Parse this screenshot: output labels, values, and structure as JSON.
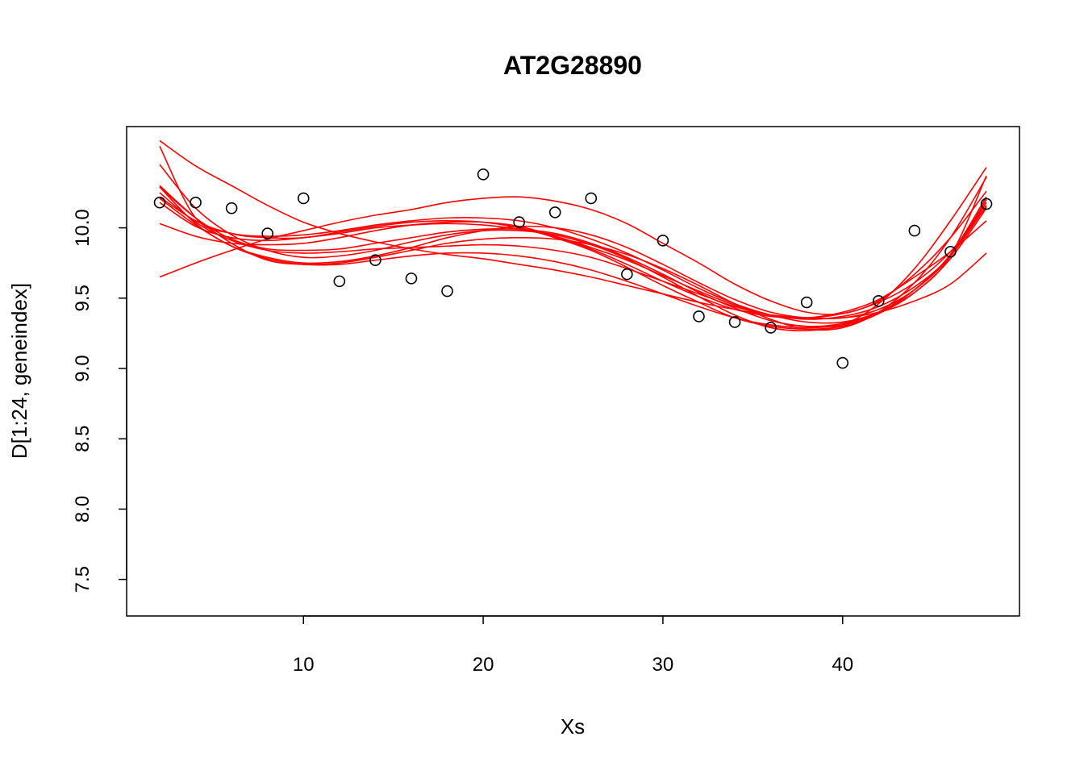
{
  "chart_data": {
    "type": "scatter",
    "title": "AT2G28890",
    "xlabel": "Xs",
    "ylabel": "D[1:24, geneindex]",
    "xlim": [
      0.16,
      49.84
    ],
    "ylim": [
      7.24,
      10.72
    ],
    "xticks": [
      10,
      20,
      30,
      40
    ],
    "yticks": [
      7.5,
      8.0,
      8.5,
      9.0,
      9.5,
      10.0
    ],
    "ytick_labels": [
      "7.5",
      "8.0",
      "8.5",
      "9.0",
      "9.5",
      "10.0"
    ],
    "grid": false,
    "points_x": [
      2,
      4,
      6,
      8,
      10,
      12,
      14,
      16,
      18,
      20,
      22,
      24,
      26,
      28,
      30,
      32,
      34,
      36,
      38,
      40,
      42,
      44,
      46,
      48
    ],
    "points_y": [
      10.18,
      10.18,
      10.14,
      9.96,
      10.21,
      9.62,
      9.77,
      9.64,
      9.55,
      10.38,
      10.04,
      10.11,
      10.21,
      9.67,
      9.91,
      9.37,
      9.33,
      9.29,
      9.47,
      9.04,
      9.48,
      9.98,
      9.83,
      10.17
    ],
    "point_color": "#000000",
    "curve_color": "#ff0000",
    "curves_x": [
      2,
      4,
      6,
      8,
      10,
      12,
      14,
      16,
      18,
      20,
      22,
      24,
      26,
      28,
      30,
      32,
      34,
      36,
      38,
      40,
      42,
      44,
      46,
      48
    ],
    "curves": [
      [
        10.62,
        10.44,
        10.3,
        10.16,
        10.04,
        9.96,
        9.9,
        9.85,
        9.81,
        9.78,
        9.74,
        9.7,
        9.65,
        9.59,
        9.53,
        9.47,
        9.42,
        9.38,
        9.36,
        9.36,
        9.4,
        9.48,
        9.6,
        9.82
      ],
      [
        9.65,
        9.75,
        9.84,
        9.92,
        9.98,
        10.04,
        10.09,
        10.13,
        10.18,
        10.21,
        10.22,
        10.19,
        10.13,
        10.03,
        9.89,
        9.75,
        9.6,
        9.48,
        9.4,
        9.39,
        9.48,
        9.67,
        9.93,
        10.26
      ],
      [
        10.29,
        10.07,
        9.92,
        9.85,
        9.84,
        9.85,
        9.89,
        9.93,
        9.97,
        9.99,
        9.99,
        9.96,
        9.89,
        9.79,
        9.67,
        9.54,
        9.43,
        9.34,
        9.3,
        9.32,
        9.4,
        9.56,
        9.8,
        10.18
      ],
      [
        10.25,
        10.04,
        9.91,
        9.84,
        9.82,
        9.83,
        9.85,
        9.86,
        9.87,
        9.88,
        9.87,
        9.84,
        9.79,
        9.71,
        9.62,
        9.53,
        9.44,
        9.38,
        9.36,
        9.39,
        9.47,
        9.61,
        9.83,
        10.15
      ],
      [
        10.03,
        9.94,
        9.89,
        9.88,
        9.89,
        9.93,
        9.98,
        10.02,
        10.04,
        10.04,
        10.01,
        9.94,
        9.85,
        9.74,
        9.62,
        9.51,
        9.42,
        9.37,
        9.36,
        9.4,
        9.49,
        9.65,
        9.83,
        10.05
      ],
      [
        10.22,
        10.05,
        9.96,
        9.94,
        9.95,
        9.98,
        10.02,
        10.05,
        10.07,
        10.07,
        10.05,
        10.0,
        9.92,
        9.82,
        9.7,
        9.57,
        9.46,
        9.38,
        9.33,
        9.33,
        9.4,
        9.54,
        9.78,
        10.14
      ],
      [
        10.58,
        10.07,
        9.96,
        9.93,
        9.93,
        9.97,
        10.01,
        10.04,
        10.05,
        10.04,
        10.0,
        9.93,
        9.84,
        9.72,
        9.59,
        9.47,
        9.36,
        9.3,
        9.28,
        9.3,
        9.39,
        9.56,
        9.81,
        10.22
      ],
      [
        10.45,
        10.14,
        9.95,
        9.84,
        9.79,
        9.8,
        9.84,
        9.9,
        9.95,
        9.98,
        9.98,
        9.95,
        9.88,
        9.78,
        9.65,
        9.51,
        9.38,
        9.29,
        9.27,
        9.31,
        9.46,
        9.71,
        10.05,
        10.43
      ],
      [
        10.3,
        10.07,
        9.89,
        9.77,
        9.74,
        9.75,
        9.79,
        9.84,
        9.89,
        9.92,
        9.93,
        9.92,
        9.88,
        9.81,
        9.71,
        9.59,
        9.46,
        9.35,
        9.28,
        9.29,
        9.4,
        9.61,
        9.93,
        10.36
      ],
      [
        10.21,
        10.02,
        9.87,
        9.79,
        9.75,
        9.76,
        9.8,
        9.86,
        9.93,
        9.98,
        10.01,
        10.0,
        9.95,
        9.86,
        9.74,
        9.61,
        9.49,
        9.4,
        9.36,
        9.36,
        9.42,
        9.56,
        9.8,
        10.2
      ],
      [
        10.29,
        10.03,
        9.87,
        9.78,
        9.74,
        9.74,
        9.77,
        9.8,
        9.82,
        9.82,
        9.8,
        9.76,
        9.7,
        9.62,
        9.53,
        9.44,
        9.36,
        9.31,
        9.29,
        9.31,
        9.39,
        9.54,
        9.8,
        10.37
      ],
      [
        10.18,
        10.01,
        9.93,
        9.91,
        9.93,
        9.96,
        10.0,
        10.02,
        10.03,
        10.02,
        9.99,
        9.94,
        9.86,
        9.77,
        9.66,
        9.55,
        9.45,
        9.38,
        9.35,
        9.37,
        9.44,
        9.58,
        9.8,
        10.16
      ]
    ]
  }
}
